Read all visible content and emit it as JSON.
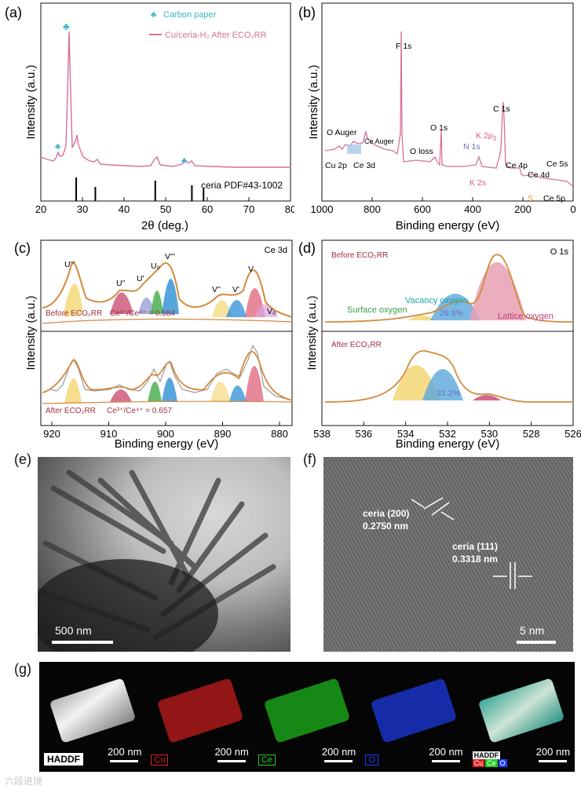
{
  "panels": {
    "a": {
      "label": "(a)",
      "legend": [
        "Carbon paper",
        "Cu/ceria-H₂ After ECO₂RR"
      ],
      "colors": {
        "trace": "#d6709a",
        "marker": "#3bb6c8",
        "ref": "#000000"
      },
      "ylabel": "Intensity (a.u.)",
      "xlabel": "2θ (deg.)",
      "xticks": [
        "20",
        "30",
        "40",
        "50",
        "60",
        "70",
        "80"
      ],
      "ref_label": "ceria PDF#43-1002",
      "ref_lines_2theta": [
        28.5,
        33.1,
        47.5,
        56.3,
        59.1
      ],
      "marker_glyph": "♣"
    },
    "b": {
      "label": "(b)",
      "ylabel": "Intensity (a.u.)",
      "xlabel": "Binding energy (eV)",
      "xticks": [
        "1000",
        "800",
        "600",
        "400",
        "200",
        "0"
      ],
      "peaks": {
        "f1s": "F 1s",
        "o_auger": "O Auger",
        "ce_auger": "Ce Auger",
        "cu2p": "Cu 2p",
        "ce3d": "Ce 3d",
        "o1s": "O 1s",
        "oloss": "O loss",
        "n1s": "N 1s",
        "k2p3": "K 2p",
        "k2p3_sub": "3",
        "k2s": "K 2s",
        "c1s": "C 1s",
        "ce4p": "Ce 4p",
        "ce4d": "Ce 4d",
        "ce5s": "Ce 5s",
        "ce5p": "Ce 5p",
        "s": "S"
      },
      "colors": {
        "trace": "#d6709a",
        "n1s": "#6870b8",
        "k": "#e05a7a",
        "s": "#e0a020"
      }
    },
    "c": {
      "label": "(c)",
      "title": "Ce 3d",
      "ylabel": "Intensity (a.u.)",
      "xlabel": "Binding energy (eV)",
      "xticks": [
        "920",
        "910",
        "900",
        "890",
        "880"
      ],
      "peak_labels": [
        "U'''",
        "U''",
        "U'",
        "U₀",
        "V'''",
        "V''",
        "V'",
        "V",
        "V₀"
      ],
      "before_label": "Before ECO₂RR",
      "before_ratio": "Ce³⁺/Ce⁴⁺ = 0.584",
      "after_label": "After ECO₂RR",
      "after_ratio": "Ce³⁺/Ce⁴⁺ = 0.657"
    },
    "d": {
      "label": "(d)",
      "title": "O 1s",
      "ylabel": "Intensity (a.u.)",
      "xlabel": "Binding energy (eV)",
      "xticks": [
        "538",
        "536",
        "534",
        "532",
        "530",
        "528",
        "526"
      ],
      "before_label": "Before ECO₂RR",
      "after_label": "After ECO₂RR",
      "vacancy": "Vacancy oxygen",
      "surface": "Surface oxygen",
      "lattice": "Lattice oxygen",
      "before_pct": "29.8%",
      "after_pct": "31.2%"
    },
    "e": {
      "label": "(e)",
      "scale": "500 nm"
    },
    "f": {
      "label": "(f)",
      "fringe1_name": "ceria (200)",
      "fringe1_d": "0.2750 nm",
      "fringe2_name": "ceria (111)",
      "fringe2_d": "0.3318 nm",
      "scale": "5 nm"
    },
    "g": {
      "label": "(g)",
      "maps": [
        {
          "name": "HADDF",
          "scale": "200 nm",
          "color": "#ffffff"
        },
        {
          "name": "Cu",
          "scale": "200 nm",
          "color": "#e02020"
        },
        {
          "name": "Ce",
          "scale": "200 nm",
          "color": "#20d020"
        },
        {
          "name": "O",
          "scale": "200 nm",
          "color": "#2040ff"
        },
        {
          "name": "HADDF",
          "scale": "200 nm",
          "color": "#ffffff"
        }
      ],
      "overlay_legend": [
        "Cu",
        "Ce",
        "O"
      ]
    }
  },
  "watermark": "六段进境"
}
